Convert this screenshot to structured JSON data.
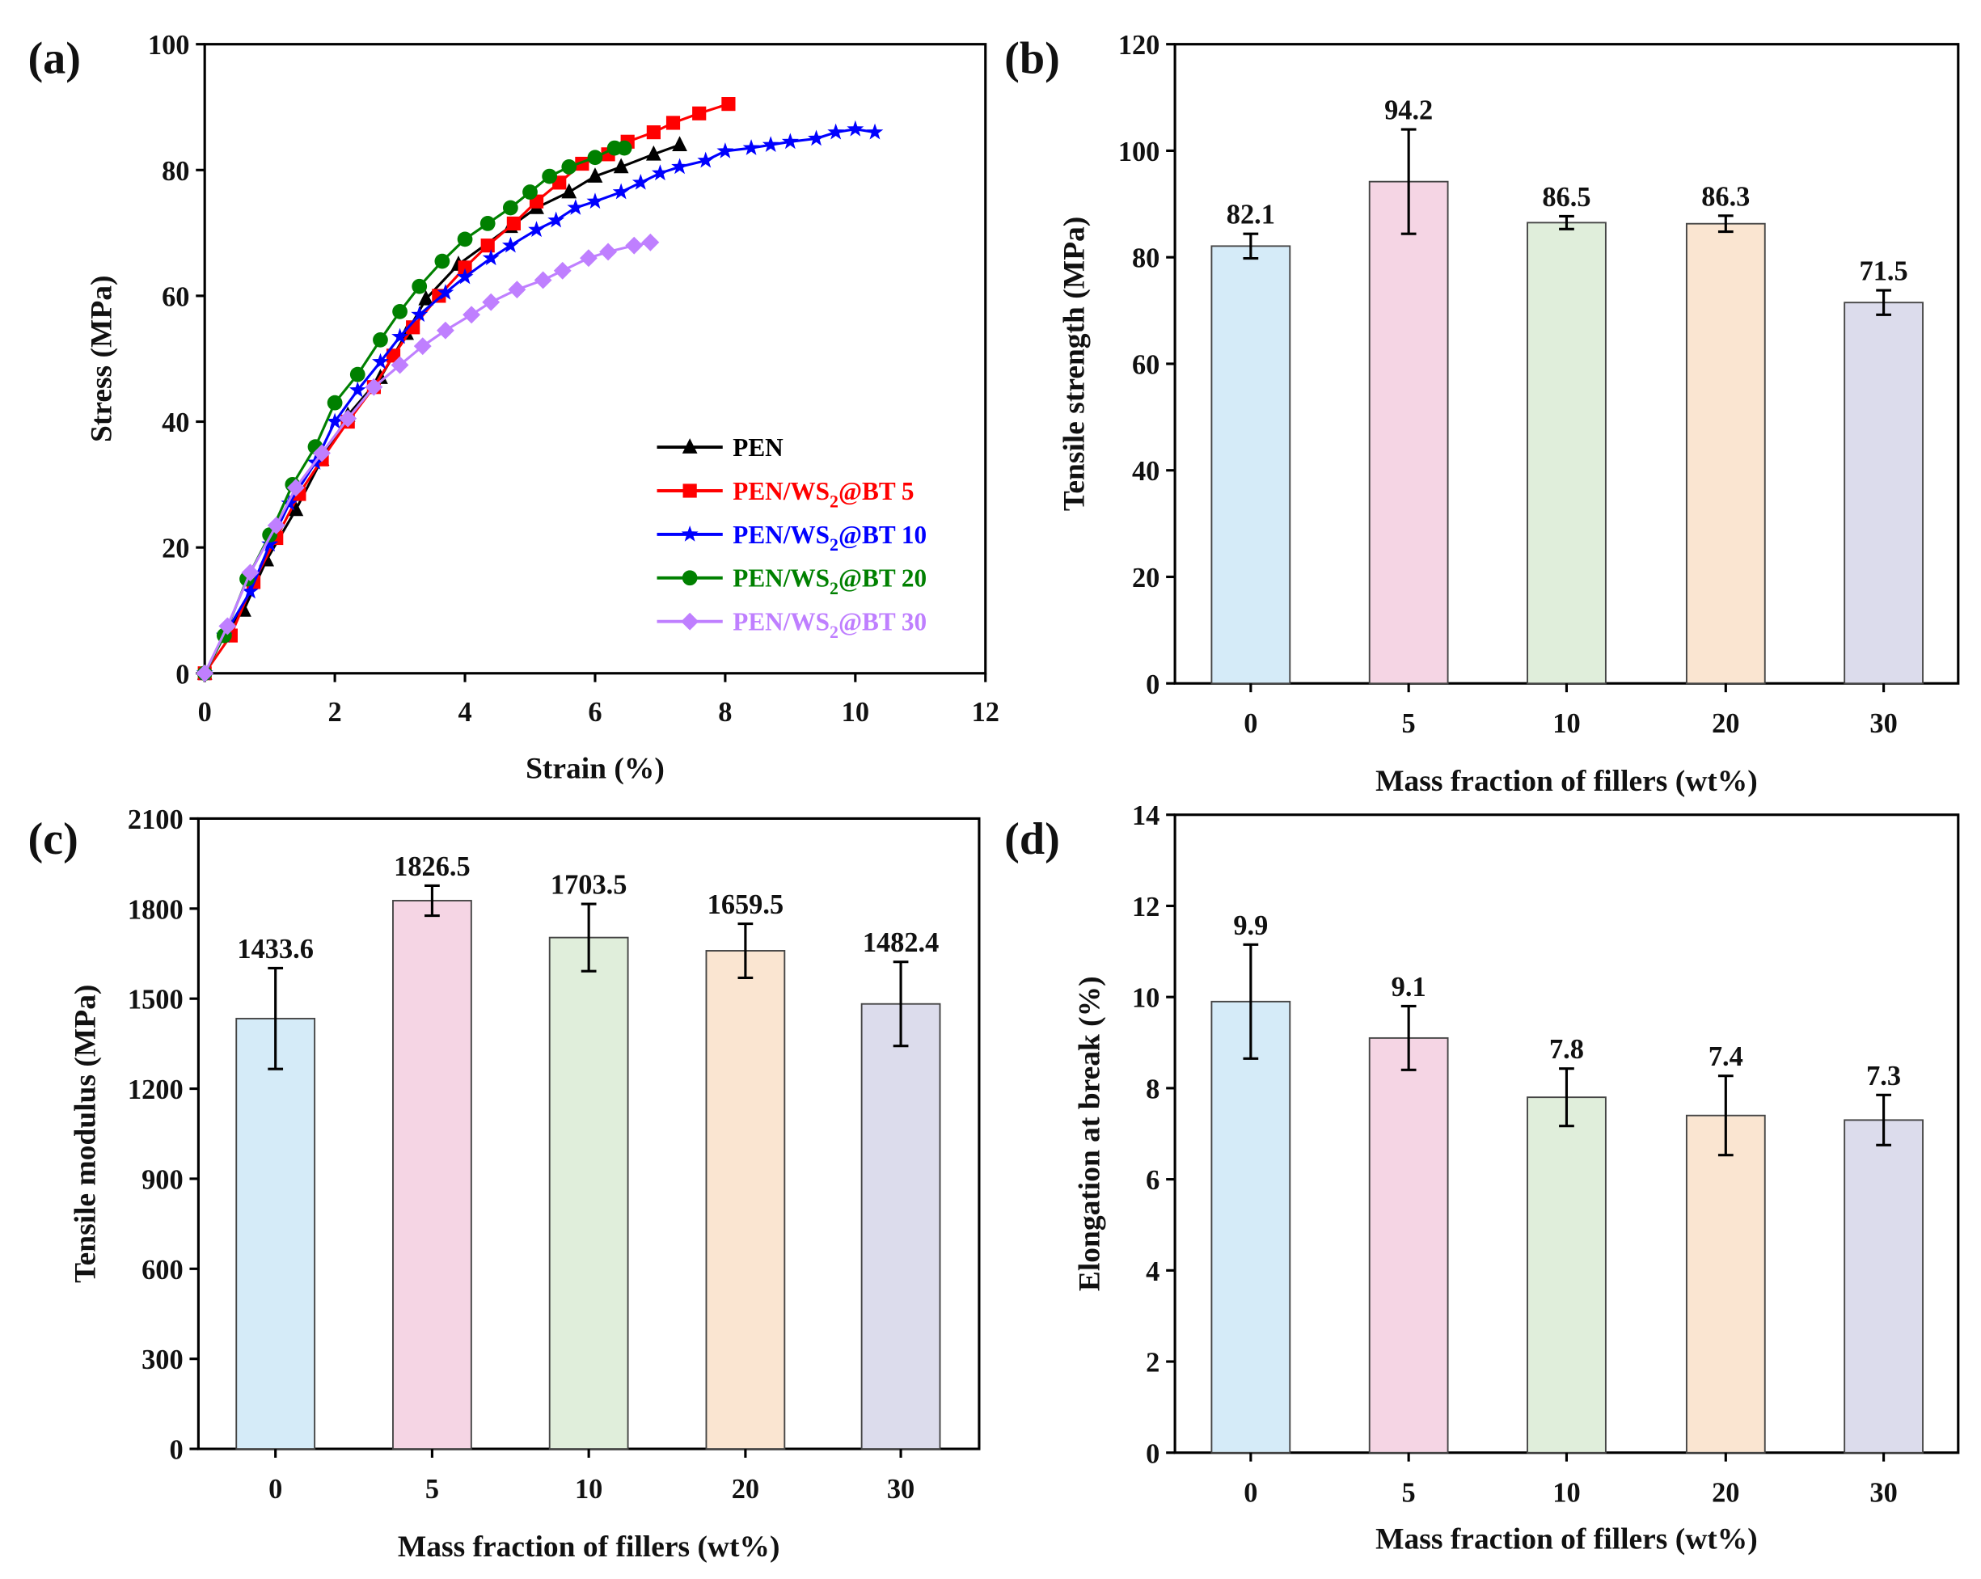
{
  "chart_data": [
    {
      "panel": "(a)",
      "type": "line",
      "xlabel": "Strain (%)",
      "ylabel": "Stress (MPa)",
      "xlim": [
        0,
        12
      ],
      "ylim": [
        0,
        100
      ],
      "xticks": [
        0,
        2,
        4,
        6,
        8,
        10,
        12
      ],
      "yticks": [
        0,
        20,
        40,
        60,
        80,
        100
      ],
      "legend_position": "bottom-right",
      "series": [
        {
          "name": "PEN",
          "label": {
            "pre": "PEN",
            "sub": "",
            "post": ""
          },
          "color": "#000000",
          "marker": "triangle",
          "points": [
            [
              0,
              0
            ],
            [
              0.35,
              7
            ],
            [
              0.6,
              10
            ],
            [
              0.95,
              18
            ],
            [
              1.4,
              26
            ],
            [
              1.8,
              34
            ],
            [
              2.2,
              41
            ],
            [
              2.7,
              47
            ],
            [
              3.1,
              54
            ],
            [
              3.4,
              59.5
            ],
            [
              3.9,
              65
            ],
            [
              4.7,
              71
            ],
            [
              5.1,
              74
            ],
            [
              5.6,
              76.5
            ],
            [
              6,
              79
            ],
            [
              6.4,
              80.5
            ],
            [
              6.9,
              82.5
            ],
            [
              7.3,
              84
            ]
          ]
        },
        {
          "name": "PEN/WS2@BT 5",
          "label": {
            "pre": "PEN/WS",
            "sub": "2",
            "post": "@BT 5"
          },
          "color": "#ff0000",
          "marker": "square",
          "points": [
            [
              0,
              0
            ],
            [
              0.4,
              6
            ],
            [
              0.75,
              14.5
            ],
            [
              1.1,
              21.5
            ],
            [
              1.45,
              28.5
            ],
            [
              1.8,
              34
            ],
            [
              2.2,
              40
            ],
            [
              2.6,
              45.5
            ],
            [
              2.9,
              50.5
            ],
            [
              3.2,
              55
            ],
            [
              3.6,
              60
            ],
            [
              4,
              64.5
            ],
            [
              4.35,
              68
            ],
            [
              4.75,
              71.5
            ],
            [
              5.1,
              75
            ],
            [
              5.45,
              78
            ],
            [
              5.8,
              81
            ],
            [
              6.2,
              82.5
            ],
            [
              6.5,
              84.5
            ],
            [
              6.9,
              86
            ],
            [
              7.2,
              87.5
            ],
            [
              7.6,
              89
            ],
            [
              8.05,
              90.5
            ]
          ]
        },
        {
          "name": "PEN/WS2@BT 10",
          "label": {
            "pre": "PEN/WS",
            "sub": "2",
            "post": "@BT 10"
          },
          "color": "#0000ff",
          "marker": "star",
          "points": [
            [
              0,
              0
            ],
            [
              0.3,
              6
            ],
            [
              0.7,
              13
            ],
            [
              1,
              20.5
            ],
            [
              1.3,
              27
            ],
            [
              1.7,
              33.5
            ],
            [
              2,
              40
            ],
            [
              2.35,
              45
            ],
            [
              2.7,
              49.5
            ],
            [
              3,
              53.5
            ],
            [
              3.3,
              57
            ],
            [
              3.7,
              60.5
            ],
            [
              4,
              63
            ],
            [
              4.4,
              66
            ],
            [
              4.7,
              68
            ],
            [
              5.1,
              70.5
            ],
            [
              5.4,
              72
            ],
            [
              5.7,
              74
            ],
            [
              6,
              75
            ],
            [
              6.4,
              76.5
            ],
            [
              6.7,
              78
            ],
            [
              7,
              79.5
            ],
            [
              7.3,
              80.5
            ],
            [
              7.7,
              81.5
            ],
            [
              8,
              83
            ],
            [
              8.4,
              83.5
            ],
            [
              8.7,
              84
            ],
            [
              9,
              84.5
            ],
            [
              9.4,
              85
            ],
            [
              9.7,
              86
            ],
            [
              10,
              86.5
            ],
            [
              10.3,
              86
            ]
          ]
        },
        {
          "name": "PEN/WS2@BT 20",
          "label": {
            "pre": "PEN/WS",
            "sub": "2",
            "post": "@BT 20"
          },
          "color": "#008000",
          "marker": "circle",
          "points": [
            [
              0,
              0
            ],
            [
              0.3,
              6
            ],
            [
              0.65,
              15
            ],
            [
              1,
              22
            ],
            [
              1.35,
              30
            ],
            [
              1.7,
              36
            ],
            [
              2,
              43
            ],
            [
              2.35,
              47.5
            ],
            [
              2.7,
              53
            ],
            [
              3,
              57.5
            ],
            [
              3.3,
              61.5
            ],
            [
              3.65,
              65.5
            ],
            [
              4,
              69
            ],
            [
              4.35,
              71.5
            ],
            [
              4.7,
              74
            ],
            [
              5,
              76.5
            ],
            [
              5.3,
              79
            ],
            [
              5.6,
              80.5
            ],
            [
              6,
              82
            ],
            [
              6.3,
              83.5
            ],
            [
              6.45,
              83.5
            ]
          ]
        },
        {
          "name": "PEN/WS2@BT 30",
          "label": {
            "pre": "PEN/WS",
            "sub": "2",
            "post": "@BT 30"
          },
          "color": "#bf7fff",
          "marker": "diamond",
          "points": [
            [
              0,
              0
            ],
            [
              0.35,
              7.5
            ],
            [
              0.7,
              16
            ],
            [
              1.1,
              23.5
            ],
            [
              1.4,
              29.5
            ],
            [
              1.8,
              35
            ],
            [
              2.2,
              40.5
            ],
            [
              2.6,
              45.5
            ],
            [
              3,
              49
            ],
            [
              3.35,
              52
            ],
            [
              3.7,
              54.5
            ],
            [
              4.1,
              57
            ],
            [
              4.4,
              59
            ],
            [
              4.8,
              61
            ],
            [
              5.2,
              62.5
            ],
            [
              5.5,
              64
            ],
            [
              5.9,
              66
            ],
            [
              6.2,
              67
            ],
            [
              6.6,
              68
            ],
            [
              6.85,
              68.5
            ]
          ]
        }
      ]
    },
    {
      "panel": "(b)",
      "type": "bar",
      "xlabel": "Mass fraction of fillers (wt%)",
      "ylabel": "Tensile strength (MPa)",
      "categories": [
        "0",
        "5",
        "10",
        "20",
        "30"
      ],
      "values": [
        82.1,
        94.2,
        86.5,
        86.3,
        71.5
      ],
      "value_labels": [
        "82.1",
        "94.2",
        "86.5",
        "86.3",
        "71.5"
      ],
      "errors": [
        2.3,
        9.8,
        1.2,
        1.5,
        2.3
      ],
      "ylim": [
        0,
        120
      ],
      "yticks": [
        0,
        20,
        40,
        60,
        80,
        100,
        120
      ]
    },
    {
      "panel": "(c)",
      "type": "bar",
      "xlabel": "Mass fraction of fillers (wt%)",
      "ylabel": "Tensile modulus (MPa)",
      "categories": [
        "0",
        "5",
        "10",
        "20",
        "30"
      ],
      "values": [
        1433.6,
        1826.5,
        1703.5,
        1659.5,
        1482.4
      ],
      "value_labels": [
        "1433.6",
        "1826.5",
        "1703.5",
        "1659.5",
        "1482.4"
      ],
      "errors": [
        168,
        50,
        112,
        90,
        140
      ],
      "ylim": [
        0,
        2100
      ],
      "yticks": [
        0,
        300,
        600,
        900,
        1200,
        1500,
        1800,
        2100
      ]
    },
    {
      "panel": "(d)",
      "type": "bar",
      "xlabel": "Mass fraction of fillers (wt%)",
      "ylabel": "Elongation at break (%)",
      "categories": [
        "0",
        "5",
        "10",
        "20",
        "30"
      ],
      "values": [
        9.9,
        9.1,
        7.8,
        7.4,
        7.3
      ],
      "value_labels": [
        "9.9",
        "9.1",
        "7.8",
        "7.4",
        "7.3"
      ],
      "errors": [
        1.25,
        0.7,
        0.63,
        0.87,
        0.55
      ],
      "ylim": [
        0,
        14
      ],
      "yticks": [
        0,
        2,
        4,
        6,
        8,
        10,
        12,
        14
      ]
    }
  ],
  "bar_colors": [
    "#d5ebf8",
    "#f5d5e4",
    "#e0eedb",
    "#fae5d1",
    "#dcdcec"
  ]
}
